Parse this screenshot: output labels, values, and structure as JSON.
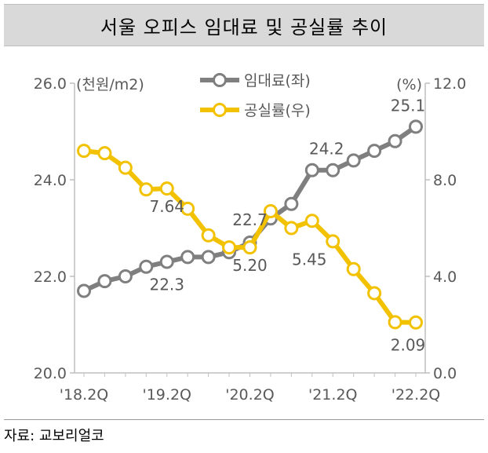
{
  "title": "서울 오피스 임대료 및 공실률 추이",
  "source": "자료: 교보리얼코",
  "colors": {
    "rent": "#7f7f7f",
    "vacancy": "#f2c200",
    "axis": "#595959"
  },
  "chart_data": {
    "type": "line",
    "left_axis": {
      "unit_label": "(천원/m2)",
      "ticks": [
        "20.0",
        "22.0",
        "24.0",
        "26.0"
      ],
      "range": [
        20,
        26
      ]
    },
    "right_axis": {
      "unit_label": "(%)",
      "ticks": [
        "0.0",
        "4.0",
        "8.0",
        "12.0"
      ],
      "range": [
        0,
        12
      ]
    },
    "x_tick_labels": [
      "'18.2Q",
      "'19.2Q",
      "'20.2Q",
      "'21.2Q",
      "'22.2Q"
    ],
    "x_tick_index": [
      0,
      4,
      8,
      12,
      16
    ],
    "x": [
      "'18.2Q",
      "'18.3Q",
      "'18.4Q",
      "'19.1Q",
      "'19.2Q",
      "'19.3Q",
      "'19.4Q",
      "'20.1Q",
      "'20.2Q",
      "'20.3Q",
      "'20.4Q",
      "'21.1Q",
      "'21.2Q",
      "'21.3Q",
      "'21.4Q",
      "'22.1Q",
      "'22.2Q"
    ],
    "series": [
      {
        "name": "임대료(좌)",
        "axis": "left",
        "values": [
          21.7,
          21.9,
          22.0,
          22.2,
          22.3,
          22.4,
          22.4,
          22.5,
          22.7,
          23.2,
          23.5,
          24.2,
          24.2,
          24.4,
          24.6,
          24.8,
          25.1
        ]
      },
      {
        "name": "공실률(우)",
        "axis": "right",
        "values": [
          9.2,
          9.1,
          8.5,
          7.6,
          7.64,
          6.8,
          5.7,
          5.2,
          5.2,
          6.7,
          6.0,
          6.3,
          5.45,
          4.3,
          3.3,
          2.1,
          2.09
        ]
      }
    ],
    "data_labels": [
      {
        "series": 0,
        "index": 4,
        "text": "22.3"
      },
      {
        "series": 0,
        "index": 8,
        "text": "22.7"
      },
      {
        "series": 0,
        "index": 12,
        "text": "24.2"
      },
      {
        "series": 0,
        "index": 16,
        "text": "25.1"
      },
      {
        "series": 1,
        "index": 4,
        "text": "7.64"
      },
      {
        "series": 1,
        "index": 8,
        "text": "5.20"
      },
      {
        "series": 1,
        "index": 12,
        "text": "5.45"
      },
      {
        "series": 1,
        "index": 16,
        "text": "2.09"
      }
    ]
  }
}
